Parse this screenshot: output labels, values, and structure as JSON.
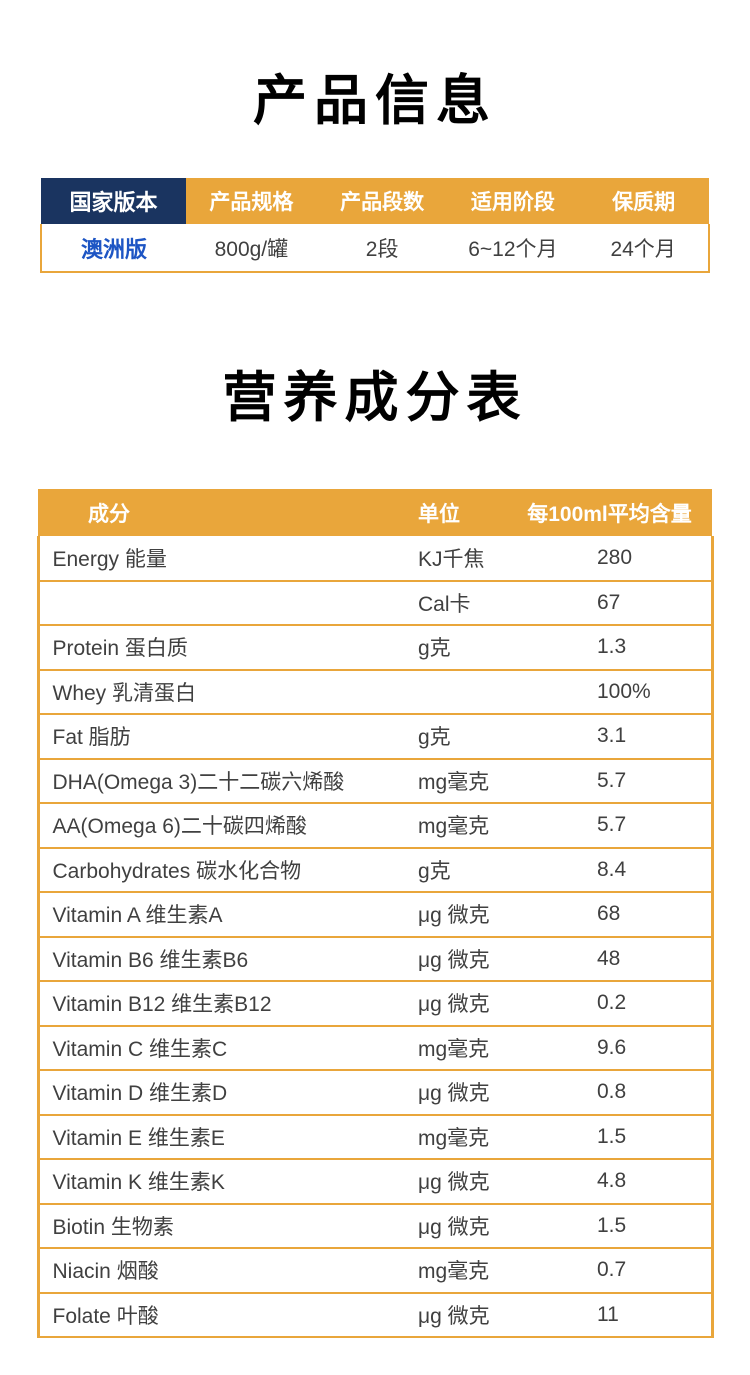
{
  "titles": {
    "product_info": "产品信息",
    "nutrition": "营养成分表"
  },
  "product_table": {
    "headers": [
      "国家版本",
      "产品规格",
      "产品段数",
      "适用阶段",
      "保质期"
    ],
    "values": [
      "澳洲版",
      "800g/罐",
      "2段",
      "6~12个月",
      "24个月"
    ]
  },
  "nutrition_table": {
    "headers": [
      "成分",
      "单位",
      "每100ml平均含量"
    ],
    "rows": [
      {
        "name": "Energy 能量",
        "unit": "KJ千焦",
        "value": "280"
      },
      {
        "name": "",
        "unit": "Cal卡",
        "value": "67"
      },
      {
        "name": "Protein 蛋白质",
        "unit": "g克",
        "value": "1.3"
      },
      {
        "name": "Whey 乳清蛋白",
        "unit": "",
        "value": "100%"
      },
      {
        "name": "Fat 脂肪",
        "unit": "g克",
        "value": "3.1"
      },
      {
        "name": "DHA(Omega 3)二十二碳六烯酸",
        "unit": "mg毫克",
        "value": "5.7"
      },
      {
        "name": "AA(Omega 6)二十碳四烯酸",
        "unit": "mg毫克",
        "value": "5.7"
      },
      {
        "name": "Carbohydrates 碳水化合物",
        "unit": "g克",
        "value": "8.4"
      },
      {
        "name": "Vitamin A 维生素A",
        "unit": "μg 微克",
        "value": "68"
      },
      {
        "name": "Vitamin B6 维生素B6",
        "unit": "μg 微克",
        "value": "48"
      },
      {
        "name": "Vitamin B12 维生素B12",
        "unit": "μg 微克",
        "value": "0.2"
      },
      {
        "name": "Vitamin C 维生素C",
        "unit": "mg毫克",
        "value": "9.6"
      },
      {
        "name": "Vitamin D 维生素D",
        "unit": "μg 微克",
        "value": "0.8"
      },
      {
        "name": "Vitamin E 维生素E",
        "unit": "mg毫克",
        "value": "1.5"
      },
      {
        "name": "Vitamin K 维生素K",
        "unit": "μg 微克",
        "value": "4.8"
      },
      {
        "name": "Biotin 生物素",
        "unit": "μg 微克",
        "value": "1.5"
      },
      {
        "name": "Niacin 烟酸",
        "unit": "mg毫克",
        "value": "0.7"
      },
      {
        "name": "Folate 叶酸",
        "unit": "μg 微克",
        "value": "11"
      }
    ]
  },
  "colors": {
    "gold": "#E9A63B",
    "navy": "#1A3460",
    "blue": "#1D55C4",
    "text": "#404040"
  }
}
